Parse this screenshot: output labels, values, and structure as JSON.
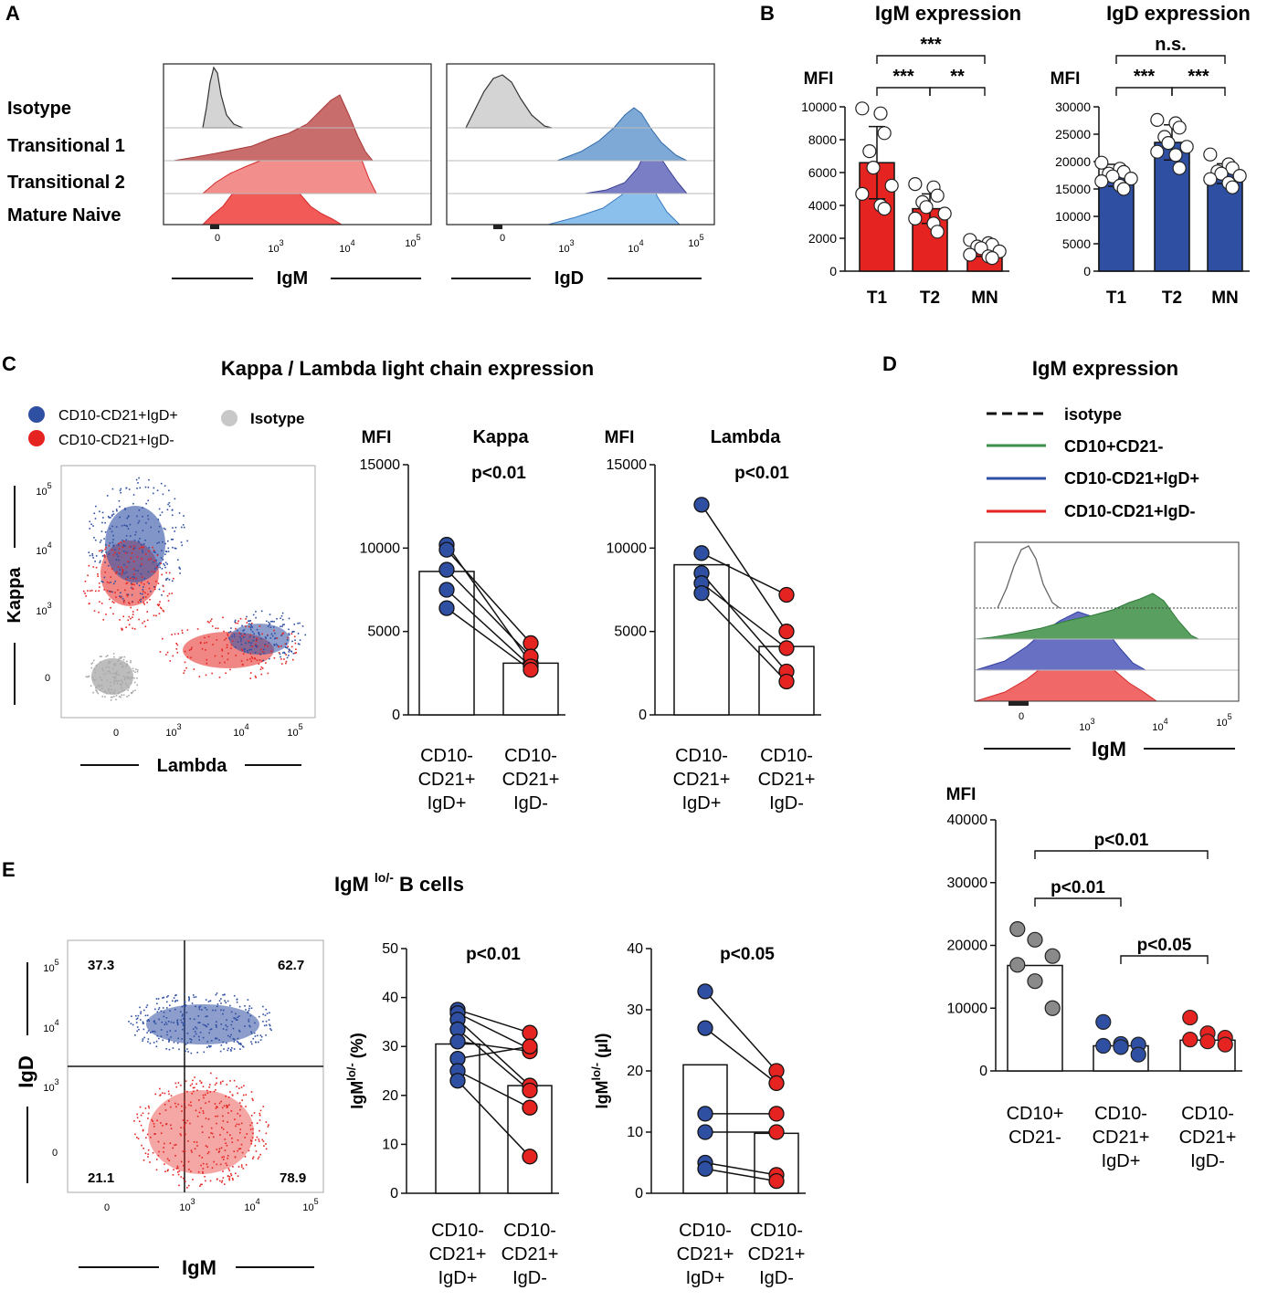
{
  "colors": {
    "red": "#e52421",
    "blue": "#2f4fa3",
    "green": "#3a8f4a",
    "grey": "#9a9a9a",
    "lightgrey": "#c8c8c8",
    "lightblue": "#6aa0d8"
  },
  "panels": {
    "A": {
      "letter": "A",
      "rows": [
        "Isotype",
        "Transitional 1",
        "Transitional 2",
        "Mature Naive"
      ],
      "ticks": [
        "0",
        "10",
        "10",
        "10"
      ],
      "tick_exps": [
        "3",
        "4",
        "5"
      ],
      "xlabels": [
        "IgM",
        "IgD"
      ]
    },
    "B": {
      "letter": "B"
    },
    "C": {
      "letter": "C",
      "title": "Kappa / Lambda light chain expression",
      "legend": [
        "CD10-CD21+IgD+",
        "CD10-CD21+IgD-",
        "Isotype"
      ],
      "scatter_xlabel": "Lambda",
      "scatter_ylabel": "Kappa",
      "scatter_ticks": [
        "0",
        "10",
        "10",
        "10"
      ],
      "scatter_tick_exps": [
        "3",
        "4",
        "5"
      ]
    },
    "D": {
      "letter": "D",
      "title": "IgM expression",
      "legend": [
        "isotype",
        "CD10+CD21-",
        "CD10-CD21+IgD+",
        "CD10-CD21+IgD-"
      ],
      "hist_xlabel": "IgM",
      "hist_ticks": [
        "0",
        "10",
        "10",
        "10"
      ],
      "hist_tick_exps": [
        "3",
        "4",
        "5"
      ]
    },
    "E": {
      "letter": "E",
      "title_main": "IgM",
      "title_sup": "lo/-",
      "title_rest": " B cells",
      "quadrants": [
        "37.3",
        "62.7",
        "21.1",
        "78.9"
      ],
      "scatter_xlabel": "IgM",
      "scatter_ylabel": "IgD",
      "scatter_ticks": [
        "0",
        "10",
        "10",
        "10"
      ],
      "scatter_tick_exps": [
        "3",
        "4",
        "5"
      ]
    }
  },
  "chart_data": [
    {
      "id": "B-IgM",
      "type": "bar",
      "title": "IgM expression",
      "ylabel": "MFI",
      "categories": [
        "T1",
        "T2",
        "MN"
      ],
      "values": [
        6600,
        3800,
        1300
      ],
      "errors": [
        2200,
        900,
        400
      ],
      "points": [
        [
          9900,
          9600,
          8400,
          7300,
          6300,
          5200,
          4700,
          4000,
          3800
        ],
        [
          5300,
          5100,
          4600,
          4200,
          3900,
          3500,
          3200,
          2900,
          2400
        ],
        [
          1900,
          1700,
          1600,
          1500,
          1400,
          1200,
          1000,
          900,
          800
        ]
      ],
      "yticks": [
        0,
        2000,
        4000,
        6000,
        8000,
        10000
      ],
      "ylim": [
        0,
        10000
      ],
      "significance": [
        {
          "from": 0,
          "to": 2,
          "label": "***",
          "level": 2
        },
        {
          "from": 0,
          "to": 1,
          "label": "***",
          "level": 1
        },
        {
          "from": 1,
          "to": 2,
          "label": "**",
          "level": 1
        }
      ]
    },
    {
      "id": "B-IgD",
      "type": "bar",
      "title": "IgD expression",
      "ylabel": "MFI",
      "categories": [
        "T1",
        "T2",
        "MN"
      ],
      "values": [
        17500,
        23500,
        17800
      ],
      "errors": [
        2000,
        3200,
        1800
      ],
      "points": [
        [
          19800,
          18700,
          18100,
          17800,
          17300,
          16900,
          16400,
          15600,
          15000
        ],
        [
          27600,
          27000,
          26200,
          24500,
          23400,
          22700,
          21800,
          21200,
          18800
        ],
        [
          21300,
          19500,
          18800,
          18200,
          17800,
          17400,
          16800,
          16100,
          15300
        ]
      ],
      "yticks": [
        0,
        5000,
        10000,
        15000,
        20000,
        25000,
        30000
      ],
      "ylim": [
        0,
        30000
      ],
      "significance": [
        {
          "from": 0,
          "to": 2,
          "label": "n.s.",
          "level": 2
        },
        {
          "from": 0,
          "to": 1,
          "label": "***",
          "level": 1
        },
        {
          "from": 1,
          "to": 2,
          "label": "***",
          "level": 1
        }
      ]
    },
    {
      "id": "C-Kappa",
      "type": "bar",
      "title": "Kappa",
      "ylabel": "MFI",
      "pvalue": "p<0.01",
      "categories": [
        "CD10-\nCD21+\nIgD+",
        "CD10-\nCD21+\nIgD-"
      ],
      "values": [
        8600,
        3100
      ],
      "pairs": [
        [
          10200,
          3100
        ],
        [
          9900,
          4300
        ],
        [
          8700,
          3500
        ],
        [
          7500,
          2900
        ],
        [
          6400,
          2700
        ]
      ],
      "yticks": [
        0,
        5000,
        10000,
        15000
      ],
      "ylim": [
        0,
        15000
      ]
    },
    {
      "id": "C-Lambda",
      "type": "bar",
      "title": "Lambda",
      "ylabel": "MFI",
      "pvalue": "p<0.01",
      "categories": [
        "CD10-\nCD21+\nIgD+",
        "CD10-\nCD21+\nIgD-"
      ],
      "values": [
        9000,
        4100
      ],
      "pairs": [
        [
          12600,
          5000
        ],
        [
          9700,
          7200
        ],
        [
          8500,
          2600
        ],
        [
          7900,
          4000
        ],
        [
          7300,
          2000
        ]
      ],
      "yticks": [
        0,
        5000,
        10000,
        15000
      ],
      "ylim": [
        0,
        15000
      ]
    },
    {
      "id": "D-MFI",
      "type": "bar",
      "ylabel": "MFI",
      "categories": [
        "CD10+\nCD21-",
        "CD10-\nCD21+\nIgD+",
        "CD10-\nCD21+\nIgD-"
      ],
      "values": [
        16800,
        4000,
        4900
      ],
      "points": [
        [
          22600,
          20900,
          18300,
          16900,
          14300,
          10000
        ],
        [
          7800,
          4300,
          4200,
          4000,
          3800,
          2600
        ],
        [
          8500,
          6000,
          5300,
          5000,
          4700,
          4200
        ]
      ],
      "yticks": [
        0,
        10000,
        20000,
        30000,
        40000
      ],
      "ylim": [
        0,
        40000
      ],
      "significance": [
        {
          "from": 0,
          "to": 2,
          "label": "p<0.01",
          "level": 3
        },
        {
          "from": 0,
          "to": 1,
          "label": "p<0.01",
          "level": 2
        },
        {
          "from": 1,
          "to": 2,
          "label": "p<0.05",
          "level": 1
        }
      ]
    },
    {
      "id": "E-percent",
      "type": "bar",
      "ylabel": "IgMlo/- (%)",
      "pvalue": "p<0.01",
      "categories": [
        "CD10-\nCD21+\nIgD+",
        "CD10-\nCD21+\nIgD-"
      ],
      "values": [
        30.5,
        22
      ],
      "pairs": [
        [
          37.5,
          32.8
        ],
        [
          36.8,
          29.5
        ],
        [
          35.5,
          22
        ],
        [
          33.5,
          21
        ],
        [
          31,
          29
        ],
        [
          27.5,
          30
        ],
        [
          25,
          17.5
        ],
        [
          23,
          7.5
        ]
      ],
      "yticks": [
        0,
        10,
        20,
        30,
        40,
        50
      ],
      "ylim": [
        0,
        50
      ]
    },
    {
      "id": "E-ul",
      "type": "bar",
      "ylabel": "IgMlo/- (µl)",
      "pvalue": "p<0.05",
      "categories": [
        "CD10-\nCD21+\nIgD+",
        "CD10-\nCD21+\nIgD-"
      ],
      "values": [
        21,
        9.8
      ],
      "pairs": [
        [
          33,
          20
        ],
        [
          27,
          18
        ],
        [
          13,
          13
        ],
        [
          10,
          10
        ],
        [
          5,
          3
        ],
        [
          4,
          2
        ]
      ],
      "yticks": [
        0,
        10,
        20,
        30,
        40
      ],
      "ylim": [
        0,
        40
      ]
    }
  ]
}
